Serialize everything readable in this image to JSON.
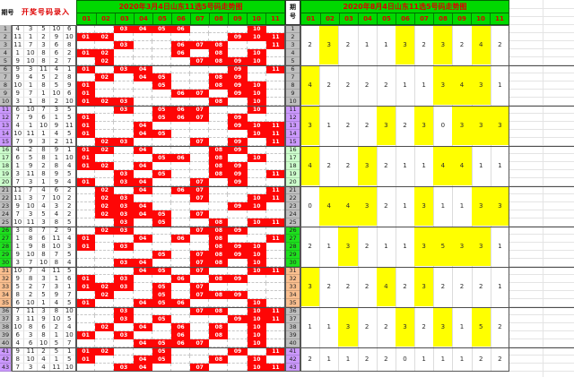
{
  "corner": {
    "period_label": "期号",
    "entry_label": "开奖号码录入"
  },
  "left_chart": {
    "title": "2020年3月4日山东11选5号码走势图"
  },
  "right_chart": {
    "title": "2020年8月4日山东11选5号码走势图",
    "period_label": "期号"
  },
  "columns": [
    "01",
    "02",
    "03",
    "04",
    "05",
    "06",
    "07",
    "08",
    "09",
    "10",
    "11"
  ],
  "highlight_threshold": 3,
  "rows": [
    {
      "no": 1,
      "nums": [
        4,
        3,
        5,
        10,
        6
      ]
    },
    {
      "no": 2,
      "nums": [
        11,
        1,
        2,
        9,
        10
      ]
    },
    {
      "no": 3,
      "nums": [
        11,
        7,
        3,
        6,
        8
      ]
    },
    {
      "no": 4,
      "nums": [
        1,
        10,
        8,
        6,
        2
      ]
    },
    {
      "no": 5,
      "nums": [
        9,
        10,
        8,
        2,
        7
      ]
    },
    {
      "no": 6,
      "nums": [
        9,
        3,
        11,
        4,
        1
      ]
    },
    {
      "no": 7,
      "nums": [
        9,
        4,
        5,
        2,
        8
      ]
    },
    {
      "no": 8,
      "nums": [
        10,
        1,
        8,
        5,
        9
      ]
    },
    {
      "no": 9,
      "nums": [
        9,
        7,
        1,
        10,
        6
      ]
    },
    {
      "no": 10,
      "nums": [
        3,
        1,
        8,
        2,
        10
      ]
    },
    {
      "no": 11,
      "nums": [
        6,
        10,
        7,
        3,
        5
      ]
    },
    {
      "no": 12,
      "nums": [
        7,
        9,
        6,
        1,
        5
      ]
    },
    {
      "no": 13,
      "nums": [
        4,
        1,
        10,
        9,
        11
      ]
    },
    {
      "no": 14,
      "nums": [
        10,
        11,
        1,
        4,
        5
      ]
    },
    {
      "no": 15,
      "nums": [
        7,
        9,
        3,
        2,
        11
      ]
    },
    {
      "no": 16,
      "nums": [
        4,
        2,
        8,
        9,
        1
      ]
    },
    {
      "no": 17,
      "nums": [
        6,
        5,
        8,
        1,
        10
      ]
    },
    {
      "no": 18,
      "nums": [
        1,
        9,
        2,
        8,
        4
      ]
    },
    {
      "no": 19,
      "nums": [
        3,
        11,
        8,
        9,
        5
      ]
    },
    {
      "no": 20,
      "nums": [
        7,
        3,
        1,
        9,
        4
      ]
    },
    {
      "no": 21,
      "nums": [
        11,
        7,
        4,
        6,
        2
      ]
    },
    {
      "no": 22,
      "nums": [
        11,
        3,
        7,
        10,
        2
      ]
    },
    {
      "no": 23,
      "nums": [
        9,
        10,
        4,
        3,
        2
      ]
    },
    {
      "no": 24,
      "nums": [
        7,
        3,
        5,
        4,
        2
      ]
    },
    {
      "no": 25,
      "nums": [
        10,
        11,
        3,
        8,
        5
      ]
    },
    {
      "no": 26,
      "nums": [
        3,
        8,
        7,
        2,
        9
      ]
    },
    {
      "no": 27,
      "nums": [
        1,
        8,
        6,
        11,
        4
      ]
    },
    {
      "no": 28,
      "nums": [
        1,
        9,
        8,
        10,
        3
      ]
    },
    {
      "no": 29,
      "nums": [
        9,
        10,
        8,
        7,
        5
      ]
    },
    {
      "no": 30,
      "nums": [
        3,
        7,
        10,
        8,
        4
      ]
    },
    {
      "no": 31,
      "nums": [
        10,
        7,
        4,
        11,
        5
      ]
    },
    {
      "no": 32,
      "nums": [
        9,
        8,
        3,
        1,
        6
      ]
    },
    {
      "no": 33,
      "nums": [
        5,
        2,
        7,
        3,
        1
      ]
    },
    {
      "no": 34,
      "nums": [
        8,
        2,
        5,
        9,
        7
      ]
    },
    {
      "no": 35,
      "nums": [
        6,
        10,
        1,
        4,
        5
      ]
    },
    {
      "no": 36,
      "nums": [
        7,
        11,
        3,
        8,
        10
      ]
    },
    {
      "no": 37,
      "nums": [
        3,
        11,
        9,
        10,
        5
      ]
    },
    {
      "no": 38,
      "nums": [
        10,
        8,
        6,
        2,
        4
      ]
    },
    {
      "no": 39,
      "nums": [
        6,
        3,
        8,
        1,
        10
      ]
    },
    {
      "no": 40,
      "nums": [
        4,
        6,
        10,
        5,
        7
      ]
    },
    {
      "no": 41,
      "nums": [
        9,
        11,
        2,
        5,
        1
      ]
    },
    {
      "no": 42,
      "nums": [
        8,
        10,
        4,
        1,
        5
      ]
    },
    {
      "no": 43,
      "nums": [
        7,
        3,
        4,
        11,
        10
      ]
    }
  ],
  "blocks": [
    {
      "start": 1,
      "end": 5,
      "counts": [
        2,
        3,
        2,
        1,
        1,
        3,
        2,
        3,
        2,
        4,
        2
      ]
    },
    {
      "start": 6,
      "end": 10,
      "counts": [
        4,
        2,
        2,
        2,
        2,
        1,
        1,
        3,
        4,
        3,
        1
      ]
    },
    {
      "start": 11,
      "end": 15,
      "counts": [
        3,
        1,
        2,
        2,
        3,
        2,
        3,
        0,
        3,
        3,
        3
      ]
    },
    {
      "start": 16,
      "end": 20,
      "counts": [
        4,
        2,
        2,
        3,
        2,
        1,
        1,
        4,
        4,
        1,
        1
      ]
    },
    {
      "start": 21,
      "end": 25,
      "counts": [
        0,
        4,
        4,
        3,
        2,
        1,
        3,
        1,
        1,
        3,
        3
      ]
    },
    {
      "start": 26,
      "end": 30,
      "counts": [
        2,
        1,
        3,
        2,
        1,
        1,
        3,
        5,
        3,
        3,
        1
      ]
    },
    {
      "start": 31,
      "end": 35,
      "counts": [
        3,
        2,
        2,
        2,
        4,
        2,
        3,
        2,
        2,
        2,
        1
      ]
    },
    {
      "start": 36,
      "end": 40,
      "counts": [
        1,
        1,
        3,
        2,
        2,
        3,
        2,
        3,
        1,
        5,
        2
      ]
    },
    {
      "start": 41,
      "end": 43,
      "counts": [
        2,
        1,
        1,
        2,
        2,
        0,
        1,
        1,
        1,
        2,
        2
      ]
    }
  ],
  "row_group_color_keys": [
    "row_gray",
    "row_gray",
    "row_purple",
    "row_pale_green",
    "row_gray",
    "row_bright_green",
    "row_tan",
    "row_gray",
    "row_purple"
  ],
  "colors": {
    "header_bg": "#00d900",
    "header_text": "#dd0000",
    "hit_cell": "#fe0606",
    "hit_cell_text": "#ffffff",
    "count_highlight": "#ffff00",
    "row_gray": "#bfbfbf",
    "row_purple": "#cc99ff",
    "row_pale_green": "#ccffcc",
    "row_bright_green": "#1ee11e",
    "row_tan": "#fabf8f",
    "grid_line": "#cfcfcf",
    "dashed_line": "#c8c8c8",
    "block_line": "#4d4d4d",
    "text": "#2b2b2b"
  }
}
